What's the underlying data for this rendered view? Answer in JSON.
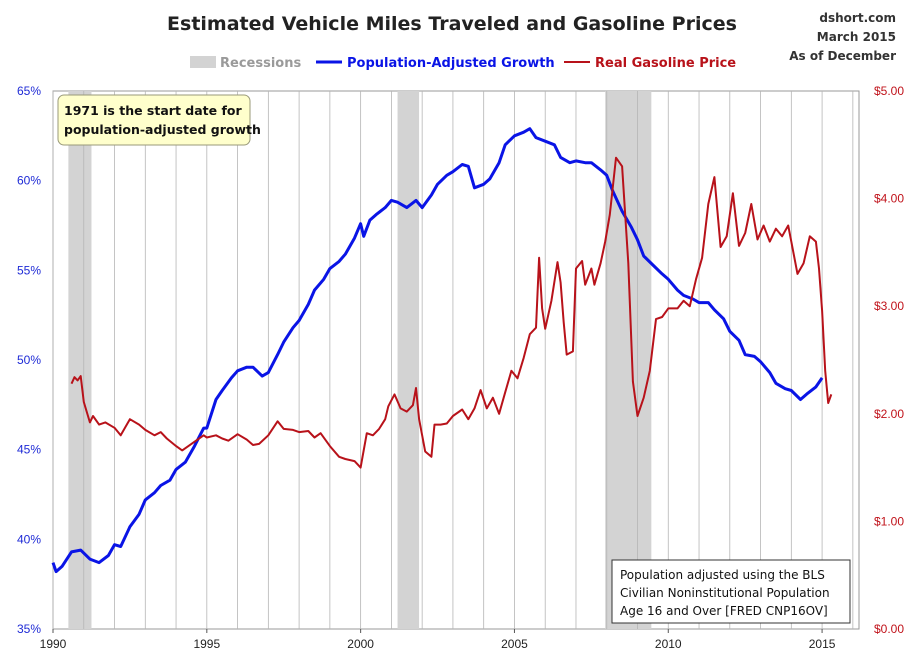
{
  "chart_data": {
    "type": "line",
    "title": "Estimated Vehicle Miles Traveled and Gasoline Prices",
    "source_lines": [
      "dshort.com",
      "March 2015",
      "As of December"
    ],
    "legend": {
      "recessions": "Recessions",
      "placement": "top-center"
    },
    "xlim": [
      1990,
      2016.2
    ],
    "x_ticks": [
      "1990",
      "1995",
      "2000",
      "2005",
      "2010",
      "2015"
    ],
    "x_tick_values": [
      1990,
      1995,
      2000,
      2005,
      2010,
      2015
    ],
    "y_left": {
      "lim": [
        35,
        65
      ],
      "ticks": [
        "35%",
        "40%",
        "45%",
        "50%",
        "55%",
        "60%",
        "65%"
      ],
      "tick_values": [
        35,
        40,
        45,
        50,
        55,
        60,
        65
      ]
    },
    "y_right": {
      "lim": [
        0,
        5
      ],
      "ticks": [
        "$0.00",
        "$1.00",
        "$2.00",
        "$3.00",
        "$4.00",
        "$5.00"
      ],
      "tick_values": [
        0,
        1,
        2,
        3,
        4,
        5
      ]
    },
    "grid": "vertical",
    "recessions": [
      [
        1990.5,
        1991.25
      ],
      [
        2001.2,
        2001.9
      ],
      [
        2007.95,
        2009.45
      ]
    ],
    "series": [
      {
        "name": "Population-Adjusted Growth",
        "axis": "left",
        "color": "#0a14e6",
        "points": [
          [
            1990.0,
            38.7
          ],
          [
            1990.1,
            38.2
          ],
          [
            1990.3,
            38.5
          ],
          [
            1990.6,
            39.3
          ],
          [
            1990.9,
            39.4
          ],
          [
            1991.2,
            38.9
          ],
          [
            1991.5,
            38.7
          ],
          [
            1991.8,
            39.1
          ],
          [
            1992.0,
            39.7
          ],
          [
            1992.2,
            39.6
          ],
          [
            1992.5,
            40.7
          ],
          [
            1992.8,
            41.4
          ],
          [
            1993.0,
            42.2
          ],
          [
            1993.3,
            42.6
          ],
          [
            1993.5,
            43.0
          ],
          [
            1993.8,
            43.3
          ],
          [
            1994.0,
            43.9
          ],
          [
            1994.3,
            44.3
          ],
          [
            1994.6,
            45.2
          ],
          [
            1994.9,
            46.2
          ],
          [
            1995.0,
            46.2
          ],
          [
            1995.3,
            47.8
          ],
          [
            1995.5,
            48.3
          ],
          [
            1995.8,
            49.0
          ],
          [
            1996.0,
            49.4
          ],
          [
            1996.3,
            49.6
          ],
          [
            1996.5,
            49.6
          ],
          [
            1996.8,
            49.1
          ],
          [
            1997.0,
            49.3
          ],
          [
            1997.3,
            50.3
          ],
          [
            1997.5,
            51.0
          ],
          [
            1997.8,
            51.8
          ],
          [
            1998.0,
            52.2
          ],
          [
            1998.3,
            53.1
          ],
          [
            1998.5,
            53.9
          ],
          [
            1998.8,
            54.5
          ],
          [
            1999.0,
            55.1
          ],
          [
            1999.3,
            55.5
          ],
          [
            1999.5,
            55.9
          ],
          [
            1999.8,
            56.8
          ],
          [
            2000.0,
            57.6
          ],
          [
            2000.1,
            56.9
          ],
          [
            2000.3,
            57.8
          ],
          [
            2000.5,
            58.1
          ],
          [
            2000.8,
            58.5
          ],
          [
            2001.0,
            58.9
          ],
          [
            2001.2,
            58.8
          ],
          [
            2001.5,
            58.5
          ],
          [
            2001.8,
            58.9
          ],
          [
            2002.0,
            58.5
          ],
          [
            2002.3,
            59.2
          ],
          [
            2002.5,
            59.8
          ],
          [
            2002.8,
            60.3
          ],
          [
            2003.0,
            60.5
          ],
          [
            2003.3,
            60.9
          ],
          [
            2003.5,
            60.8
          ],
          [
            2003.7,
            59.6
          ],
          [
            2004.0,
            59.8
          ],
          [
            2004.2,
            60.1
          ],
          [
            2004.5,
            61.0
          ],
          [
            2004.7,
            62.0
          ],
          [
            2005.0,
            62.5
          ],
          [
            2005.3,
            62.7
          ],
          [
            2005.5,
            62.9
          ],
          [
            2005.7,
            62.4
          ],
          [
            2006.0,
            62.2
          ],
          [
            2006.3,
            62.0
          ],
          [
            2006.5,
            61.3
          ],
          [
            2006.8,
            61.0
          ],
          [
            2007.0,
            61.1
          ],
          [
            2007.3,
            61.0
          ],
          [
            2007.5,
            61.0
          ],
          [
            2007.8,
            60.6
          ],
          [
            2008.0,
            60.3
          ],
          [
            2008.2,
            59.4
          ],
          [
            2008.5,
            58.3
          ],
          [
            2008.8,
            57.4
          ],
          [
            2009.0,
            56.7
          ],
          [
            2009.2,
            55.8
          ],
          [
            2009.5,
            55.3
          ],
          [
            2009.8,
            54.8
          ],
          [
            2010.0,
            54.5
          ],
          [
            2010.3,
            53.9
          ],
          [
            2010.5,
            53.6
          ],
          [
            2010.8,
            53.4
          ],
          [
            2011.0,
            53.2
          ],
          [
            2011.3,
            53.2
          ],
          [
            2011.5,
            52.8
          ],
          [
            2011.8,
            52.3
          ],
          [
            2012.0,
            51.6
          ],
          [
            2012.3,
            51.1
          ],
          [
            2012.5,
            50.3
          ],
          [
            2012.8,
            50.2
          ],
          [
            2013.0,
            49.9
          ],
          [
            2013.3,
            49.3
          ],
          [
            2013.5,
            48.7
          ],
          [
            2013.8,
            48.4
          ],
          [
            2014.0,
            48.3
          ],
          [
            2014.3,
            47.8
          ],
          [
            2014.5,
            48.1
          ],
          [
            2014.8,
            48.5
          ],
          [
            2015.0,
            49.0
          ]
        ]
      },
      {
        "name": "Real Gasoline Price",
        "axis": "right",
        "color": "#b8121a",
        "points": [
          [
            1990.6,
            2.28
          ],
          [
            1990.7,
            2.34
          ],
          [
            1990.8,
            2.31
          ],
          [
            1990.9,
            2.35
          ],
          [
            1991.0,
            2.11
          ],
          [
            1991.2,
            1.92
          ],
          [
            1991.3,
            1.98
          ],
          [
            1991.5,
            1.9
          ],
          [
            1991.7,
            1.92
          ],
          [
            1992.0,
            1.87
          ],
          [
            1992.2,
            1.8
          ],
          [
            1992.5,
            1.95
          ],
          [
            1992.8,
            1.9
          ],
          [
            1993.0,
            1.85
          ],
          [
            1993.3,
            1.8
          ],
          [
            1993.5,
            1.83
          ],
          [
            1993.7,
            1.77
          ],
          [
            1994.0,
            1.7
          ],
          [
            1994.2,
            1.66
          ],
          [
            1994.5,
            1.72
          ],
          [
            1994.7,
            1.76
          ],
          [
            1994.9,
            1.8
          ],
          [
            1995.0,
            1.78
          ],
          [
            1995.3,
            1.8
          ],
          [
            1995.5,
            1.77
          ],
          [
            1995.7,
            1.75
          ],
          [
            1996.0,
            1.81
          ],
          [
            1996.3,
            1.76
          ],
          [
            1996.5,
            1.71
          ],
          [
            1996.7,
            1.72
          ],
          [
            1997.0,
            1.8
          ],
          [
            1997.3,
            1.93
          ],
          [
            1997.5,
            1.86
          ],
          [
            1997.8,
            1.85
          ],
          [
            1998.0,
            1.83
          ],
          [
            1998.3,
            1.84
          ],
          [
            1998.5,
            1.78
          ],
          [
            1998.7,
            1.82
          ],
          [
            1999.0,
            1.7
          ],
          [
            1999.3,
            1.6
          ],
          [
            1999.5,
            1.58
          ],
          [
            1999.8,
            1.56
          ],
          [
            2000.0,
            1.5
          ],
          [
            2000.2,
            1.82
          ],
          [
            2000.4,
            1.8
          ],
          [
            2000.6,
            1.86
          ],
          [
            2000.8,
            1.95
          ],
          [
            2000.9,
            2.07
          ],
          [
            2001.1,
            2.18
          ],
          [
            2001.3,
            2.05
          ],
          [
            2001.5,
            2.02
          ],
          [
            2001.7,
            2.08
          ],
          [
            2001.8,
            2.24
          ],
          [
            2001.9,
            1.95
          ],
          [
            2002.1,
            1.65
          ],
          [
            2002.3,
            1.6
          ],
          [
            2002.4,
            1.9
          ],
          [
            2002.6,
            1.9
          ],
          [
            2002.8,
            1.91
          ],
          [
            2003.0,
            1.98
          ],
          [
            2003.3,
            2.04
          ],
          [
            2003.5,
            1.95
          ],
          [
            2003.7,
            2.05
          ],
          [
            2003.9,
            2.22
          ],
          [
            2004.1,
            2.05
          ],
          [
            2004.3,
            2.15
          ],
          [
            2004.5,
            2.0
          ],
          [
            2004.7,
            2.2
          ],
          [
            2004.9,
            2.4
          ],
          [
            2005.1,
            2.33
          ],
          [
            2005.3,
            2.52
          ],
          [
            2005.5,
            2.74
          ],
          [
            2005.7,
            2.8
          ],
          [
            2005.8,
            3.45
          ],
          [
            2005.9,
            2.98
          ],
          [
            2006.0,
            2.79
          ],
          [
            2006.2,
            3.05
          ],
          [
            2006.4,
            3.41
          ],
          [
            2006.5,
            3.22
          ],
          [
            2006.6,
            2.85
          ],
          [
            2006.7,
            2.55
          ],
          [
            2006.9,
            2.58
          ],
          [
            2007.0,
            3.35
          ],
          [
            2007.2,
            3.42
          ],
          [
            2007.3,
            3.2
          ],
          [
            2007.5,
            3.35
          ],
          [
            2007.6,
            3.2
          ],
          [
            2007.8,
            3.4
          ],
          [
            2007.95,
            3.6
          ],
          [
            2008.1,
            3.85
          ],
          [
            2008.3,
            4.38
          ],
          [
            2008.5,
            4.3
          ],
          [
            2008.7,
            3.4
          ],
          [
            2008.85,
            2.3
          ],
          [
            2009.0,
            1.98
          ],
          [
            2009.2,
            2.15
          ],
          [
            2009.4,
            2.4
          ],
          [
            2009.6,
            2.88
          ],
          [
            2009.8,
            2.9
          ],
          [
            2010.0,
            2.98
          ],
          [
            2010.3,
            2.98
          ],
          [
            2010.5,
            3.05
          ],
          [
            2010.7,
            3.0
          ],
          [
            2010.9,
            3.25
          ],
          [
            2011.1,
            3.45
          ],
          [
            2011.3,
            3.95
          ],
          [
            2011.5,
            4.2
          ],
          [
            2011.7,
            3.55
          ],
          [
            2011.9,
            3.65
          ],
          [
            2012.1,
            4.05
          ],
          [
            2012.3,
            3.56
          ],
          [
            2012.5,
            3.68
          ],
          [
            2012.7,
            3.95
          ],
          [
            2012.9,
            3.62
          ],
          [
            2013.1,
            3.75
          ],
          [
            2013.3,
            3.6
          ],
          [
            2013.5,
            3.72
          ],
          [
            2013.7,
            3.65
          ],
          [
            2013.9,
            3.75
          ],
          [
            2014.0,
            3.6
          ],
          [
            2014.2,
            3.3
          ],
          [
            2014.4,
            3.4
          ],
          [
            2014.6,
            3.65
          ],
          [
            2014.8,
            3.6
          ],
          [
            2014.9,
            3.35
          ],
          [
            2015.0,
            2.96
          ],
          [
            2015.1,
            2.4
          ],
          [
            2015.2,
            2.1
          ],
          [
            2015.3,
            2.18
          ]
        ]
      }
    ]
  },
  "annotations": {
    "start_note_lines": [
      "1971  is the start date for",
      "population-adjusted growth"
    ],
    "population_note_lines": [
      "Population adjusted using the BLS",
      "Civilian Noninstitutional Population",
      "Age 16 and Over  [FRED CNP16OV]"
    ]
  }
}
